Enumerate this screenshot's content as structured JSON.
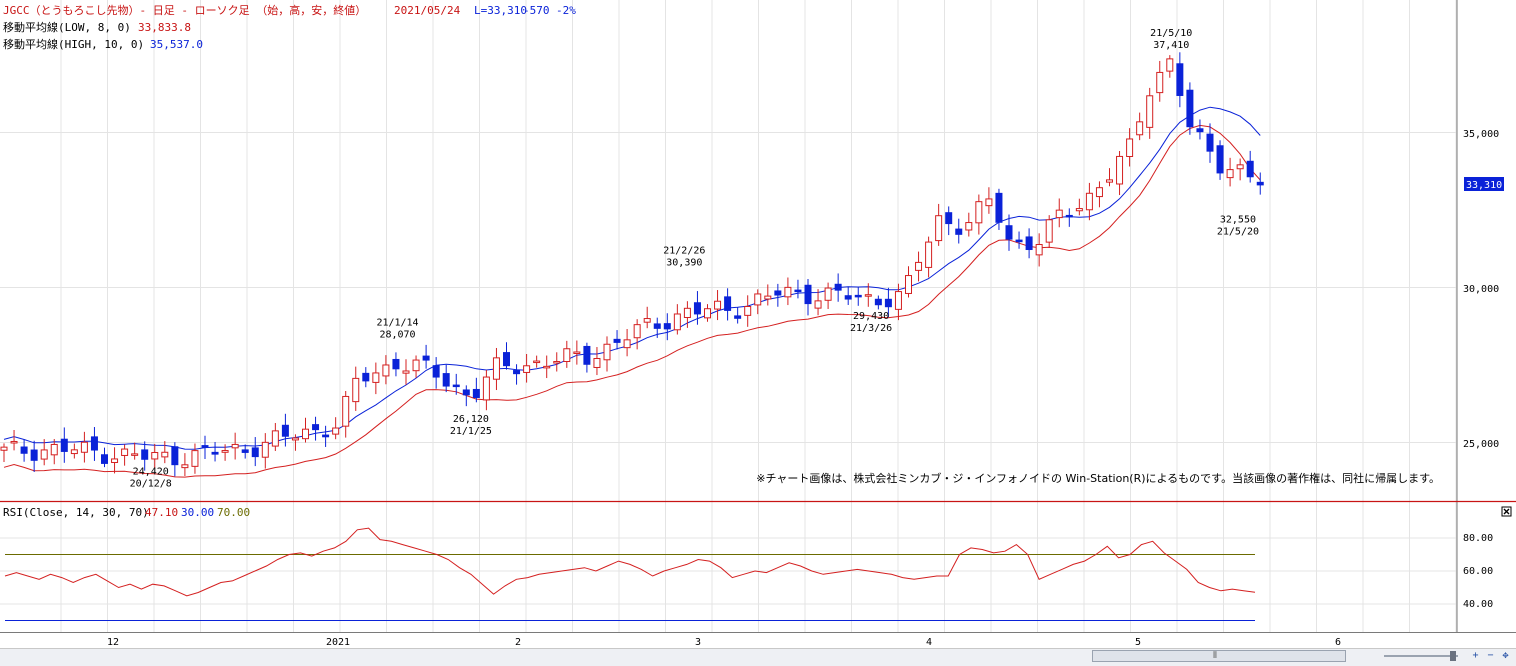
{
  "header": {
    "line1_left": "JGCC（とうもろこし先物）- 日足 - ローソク足 （始，高，安，終値）",
    "line1_date": "2021/05/24",
    "line1_last": "L=33,310",
    "line1_change": "-570",
    "line1_pct": "-2%",
    "ma_low": "移動平均線(LOW, 8, 0)",
    "ma_low_value": "33,833.8",
    "ma_high": "移動平均線(HIGH, 10, 0)",
    "ma_high_value": "35,537.0",
    "copyright": "※チャート画像は、株式会社ミンカブ・ジ・インフォノイドの Win-Station(R)によるものです。当該画像の著作権は、同社に帰属します。"
  },
  "price_axis": {
    "labels": [
      "35,000",
      "30,000",
      "25,000"
    ],
    "current": "33,310"
  },
  "rsi_panel": {
    "label": "RSI(Close, 14, 30, 70)",
    "value": "47.10",
    "lower": "30.00",
    "upper": "70.00",
    "labels": [
      "80.00",
      "60.00",
      "40.00"
    ]
  },
  "time_axis": {
    "labels": [
      "12",
      "2021",
      "2",
      "3",
      "4",
      "5",
      "6"
    ]
  },
  "annotations": [
    {
      "date": "20/12/8",
      "price": "24,420",
      "kind": "low"
    },
    {
      "date": "21/1/14",
      "price": "28,070",
      "kind": "high"
    },
    {
      "date": "21/1/25",
      "price": "26,120",
      "kind": "low"
    },
    {
      "date": "21/2/26",
      "price": "30,390",
      "kind": "high"
    },
    {
      "date": "21/3/26",
      "price": "29,430",
      "kind": "low"
    },
    {
      "date": "21/5/10",
      "price": "37,410",
      "kind": "high"
    },
    {
      "date": "21/5/20",
      "price": "32,550",
      "kind": "low"
    }
  ],
  "colors": {
    "up": "#d42020",
    "down": "#0a22d8",
    "ma_low": "#d42020",
    "ma_high": "#0a22d8",
    "rsi": "#d42020",
    "rsi_upper": "#6b6b00",
    "rsi_lower": "#0a22d8",
    "grid": "#e4e4e4",
    "divider": "#c81414"
  },
  "chart_data": [
    {
      "type": "candlestick",
      "title": "JGCC（とうもろこし先物）- 日足 - ローソク足",
      "x_range": [
        "2020/11/16",
        "2021/05/24"
      ],
      "ylim": [
        23500,
        39000
      ],
      "yticks": [
        25000,
        30000,
        35000
      ],
      "last_close": 33310,
      "marked_points": [
        {
          "date": "2020/12/08",
          "value": 24420
        },
        {
          "date": "2021/01/14",
          "value": 28070
        },
        {
          "date": "2021/01/25",
          "value": 26120
        },
        {
          "date": "2021/02/26",
          "value": 30390
        },
        {
          "date": "2021/03/26",
          "value": 29430
        },
        {
          "date": "2021/05/10",
          "value": 37410
        },
        {
          "date": "2021/05/20",
          "value": 32550
        }
      ],
      "close_path": [
        [
          "2020/11/16",
          24700
        ],
        [
          "2020/11/23",
          24800
        ],
        [
          "2020/11/30",
          24700
        ],
        [
          "2020/12/08",
          24500
        ],
        [
          "2020/12/15",
          24600
        ],
        [
          "2020/12/22",
          24800
        ],
        [
          "2020/12/29",
          25200
        ],
        [
          "2021/01/05",
          25600
        ],
        [
          "2021/01/08",
          27000
        ],
        [
          "2021/01/14",
          27600
        ],
        [
          "2021/01/19",
          27300
        ],
        [
          "2021/01/25",
          26500
        ],
        [
          "2021/01/29",
          27400
        ],
        [
          "2021/02/05",
          27600
        ],
        [
          "2021/02/12",
          27800
        ],
        [
          "2021/02/19",
          28600
        ],
        [
          "2021/02/26",
          29200
        ],
        [
          "2021/03/05",
          29300
        ],
        [
          "2021/03/12",
          29800
        ],
        [
          "2021/03/19",
          29800
        ],
        [
          "2021/03/26",
          29600
        ],
        [
          "2021/03/31",
          29800
        ],
        [
          "2021/04/05",
          32200
        ],
        [
          "2021/04/09",
          32000
        ],
        [
          "2021/04/13",
          32800
        ],
        [
          "2021/04/16",
          31400
        ],
        [
          "2021/04/20",
          31500
        ],
        [
          "2021/04/23",
          32200
        ],
        [
          "2021/04/27",
          32800
        ],
        [
          "2021/04/30",
          33500
        ],
        [
          "2021/05/04",
          34500
        ],
        [
          "2021/05/07",
          36600
        ],
        [
          "2021/05/10",
          37400
        ],
        [
          "2021/05/13",
          35000
        ],
        [
          "2021/05/17",
          34000
        ],
        [
          "2021/05/20",
          33900
        ],
        [
          "2021/05/24",
          33310
        ]
      ],
      "series": [
        {
          "name": "移動平均線(LOW, 8, 0)",
          "last_value": 33833.8
        },
        {
          "name": "移動平均線(HIGH, 10, 0)",
          "last_value": 35537.0
        }
      ]
    },
    {
      "type": "line",
      "title": "RSI(Close, 14, 30, 70)",
      "ylim": [
        20,
        92
      ],
      "yticks": [
        40,
        60,
        80
      ],
      "levels": [
        30,
        70
      ],
      "last_value": 47.1,
      "series": [
        {
          "name": "RSI(Close, 14, 30, 70)",
          "values": [
            57,
            59,
            57,
            55,
            58,
            56,
            53,
            56,
            58,
            54,
            50,
            52,
            49,
            52,
            51,
            48,
            45,
            47,
            50,
            53,
            54,
            57,
            60,
            63,
            67,
            70,
            71,
            69,
            72,
            74,
            78,
            85,
            86,
            79,
            78,
            76,
            74,
            72,
            70,
            67,
            62,
            58,
            52,
            46,
            51,
            55,
            56,
            58,
            59,
            60,
            61,
            62,
            60,
            63,
            66,
            64,
            61,
            57,
            60,
            62,
            64,
            67,
            66,
            62,
            56,
            58,
            60,
            59,
            62,
            65,
            63,
            60,
            58,
            59,
            60,
            61,
            60,
            59,
            58,
            56,
            55,
            56,
            57,
            57,
            70,
            74,
            73,
            71,
            72,
            76,
            70,
            55,
            58,
            61,
            64,
            66,
            70,
            75,
            68,
            70,
            76,
            78,
            71,
            66,
            61,
            53,
            50,
            48,
            49,
            48,
            47.1
          ]
        }
      ]
    }
  ]
}
